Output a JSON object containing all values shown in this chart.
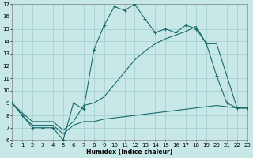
{
  "xlabel": "Humidex (Indice chaleur)",
  "xlim": [
    0,
    23
  ],
  "ylim": [
    6,
    17
  ],
  "xticks": [
    0,
    1,
    2,
    3,
    4,
    5,
    6,
    7,
    8,
    9,
    10,
    11,
    12,
    13,
    14,
    15,
    16,
    17,
    18,
    19,
    20,
    21,
    22,
    23
  ],
  "yticks": [
    6,
    7,
    8,
    9,
    10,
    11,
    12,
    13,
    14,
    15,
    16,
    17
  ],
  "bg": "#c8e8e8",
  "grid_color": "#a0cccc",
  "lc": "#1a6b6b",
  "line1_x": [
    0,
    1,
    2,
    3,
    4,
    5,
    6,
    7,
    8,
    9,
    10,
    11,
    12,
    13,
    14,
    15,
    16,
    17,
    18,
    19,
    20,
    21,
    22,
    23
  ],
  "line1_y": [
    9,
    8,
    7,
    7,
    7,
    6,
    9,
    8.5,
    13.3,
    15.3,
    16.8,
    16.5,
    17.0,
    15.8,
    14.7,
    15.0,
    14.7,
    15.3,
    15.0,
    13.8,
    11.2,
    9.0,
    8.6,
    8.6
  ],
  "line2_x": [
    0,
    1,
    2,
    3,
    4,
    5,
    6,
    7,
    8,
    9,
    10,
    11,
    12,
    13,
    14,
    15,
    16,
    17,
    18,
    19,
    20,
    21,
    22,
    23
  ],
  "line2_y": [
    9,
    8.2,
    7.5,
    7.5,
    7.5,
    6.8,
    7.5,
    8.8,
    9.0,
    9.5,
    10.5,
    11.5,
    12.5,
    13.2,
    13.8,
    14.2,
    14.5,
    14.8,
    15.2,
    13.8,
    13.8,
    11.2,
    8.6,
    8.6
  ],
  "line3_x": [
    0,
    1,
    2,
    3,
    4,
    5,
    6,
    7,
    8,
    9,
    10,
    11,
    12,
    13,
    14,
    15,
    16,
    17,
    18,
    19,
    20,
    21,
    22,
    23
  ],
  "line3_y": [
    9,
    8.0,
    7.2,
    7.2,
    7.2,
    6.5,
    7.2,
    7.5,
    7.5,
    7.7,
    7.8,
    7.9,
    8.0,
    8.1,
    8.2,
    8.3,
    8.4,
    8.5,
    8.6,
    8.7,
    8.8,
    8.7,
    8.6,
    8.6
  ]
}
